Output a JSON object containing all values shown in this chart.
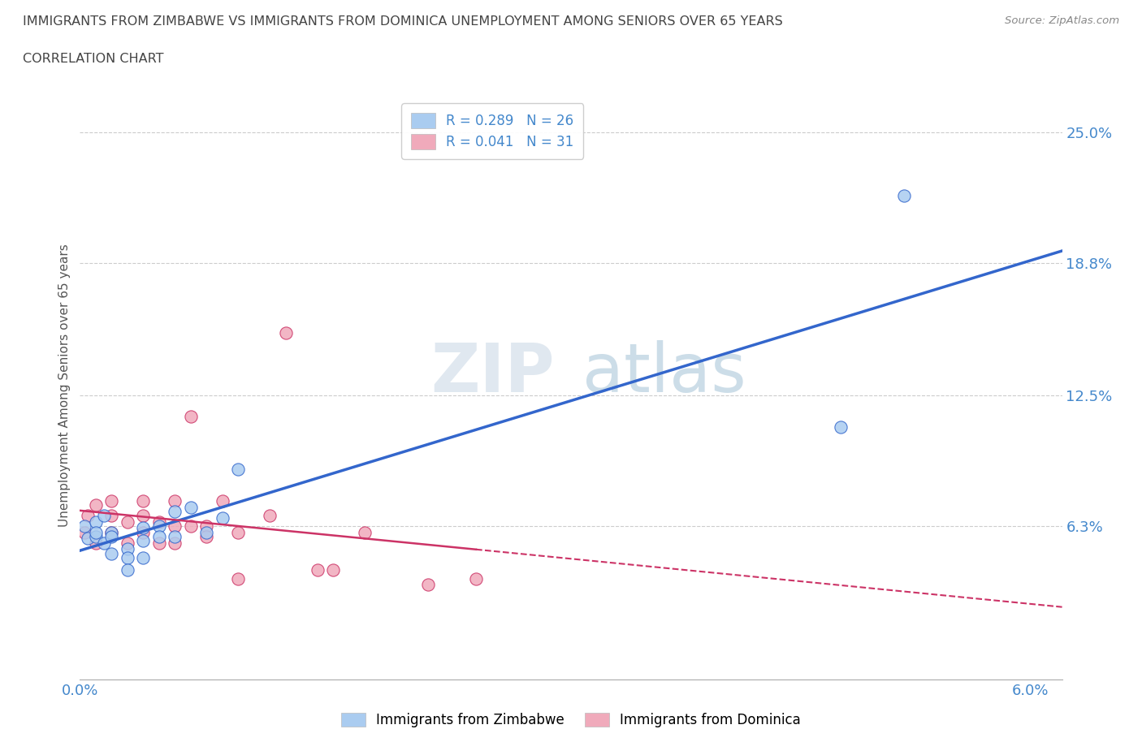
{
  "title_line1": "IMMIGRANTS FROM ZIMBABWE VS IMMIGRANTS FROM DOMINICA UNEMPLOYMENT AMONG SENIORS OVER 65 YEARS",
  "title_line2": "CORRELATION CHART",
  "source_text": "Source: ZipAtlas.com",
  "ylabel": "Unemployment Among Seniors over 65 years",
  "xlim": [
    0.0,
    0.062
  ],
  "ylim": [
    -0.01,
    0.27
  ],
  "yticks": [
    0.063,
    0.125,
    0.188,
    0.25
  ],
  "ytick_labels": [
    "6.3%",
    "12.5%",
    "18.8%",
    "25.0%"
  ],
  "xticks": [
    0.0,
    0.06
  ],
  "xtick_labels": [
    "0.0%",
    "6.0%"
  ],
  "legend_r1": "R = 0.289",
  "legend_n1": "N = 26",
  "legend_r2": "R = 0.041",
  "legend_n2": "N = 31",
  "legend_label1": "Immigrants from Zimbabwe",
  "legend_label2": "Immigrants from Dominica",
  "color_zimbabwe": "#aaccf0",
  "color_dominica": "#f0aabb",
  "line_color_zimbabwe": "#3366cc",
  "line_color_dominica": "#cc3366",
  "title_color": "#444444",
  "axis_label_color": "#555555",
  "tick_color": "#4488cc",
  "watermark_zip_color": "#e0e8f0",
  "watermark_atlas_color": "#ccdde8",
  "zimbabwe_x": [
    0.0003,
    0.0005,
    0.001,
    0.001,
    0.001,
    0.0015,
    0.0015,
    0.002,
    0.002,
    0.002,
    0.003,
    0.003,
    0.003,
    0.004,
    0.004,
    0.004,
    0.005,
    0.005,
    0.006,
    0.006,
    0.007,
    0.008,
    0.009,
    0.01,
    0.048,
    0.052
  ],
  "zimbabwe_y": [
    0.063,
    0.057,
    0.058,
    0.065,
    0.06,
    0.068,
    0.055,
    0.06,
    0.05,
    0.058,
    0.052,
    0.048,
    0.042,
    0.062,
    0.056,
    0.048,
    0.063,
    0.058,
    0.07,
    0.058,
    0.072,
    0.06,
    0.067,
    0.09,
    0.11,
    0.22
  ],
  "dominica_x": [
    0.0003,
    0.0005,
    0.001,
    0.001,
    0.002,
    0.002,
    0.002,
    0.003,
    0.003,
    0.004,
    0.004,
    0.004,
    0.005,
    0.005,
    0.006,
    0.006,
    0.006,
    0.007,
    0.007,
    0.008,
    0.008,
    0.009,
    0.01,
    0.01,
    0.012,
    0.013,
    0.015,
    0.016,
    0.018,
    0.022,
    0.025
  ],
  "dominica_y": [
    0.06,
    0.068,
    0.073,
    0.055,
    0.068,
    0.075,
    0.06,
    0.065,
    0.055,
    0.068,
    0.06,
    0.075,
    0.065,
    0.055,
    0.063,
    0.055,
    0.075,
    0.063,
    0.115,
    0.063,
    0.058,
    0.075,
    0.06,
    0.038,
    0.068,
    0.155,
    0.042,
    0.042,
    0.06,
    0.035,
    0.038
  ]
}
